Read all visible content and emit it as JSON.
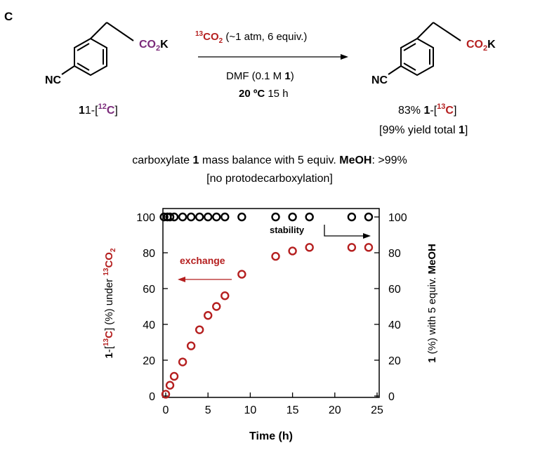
{
  "panel_label": "C",
  "scheme": {
    "reactant_label_prefix": "1-[",
    "reactant_isotope_mass": "12",
    "reactant_isotope_element": "C",
    "label_suffix": "]",
    "co2k_co": "CO",
    "co2k_sub": "2",
    "co2k_k": "K",
    "nc_label": "NC",
    "reagent_isotope_mass": "13",
    "reagent_co": "CO",
    "reagent_sub": "2",
    "reagent_conditions": " (~1 atm, 6 equiv.)",
    "solvent_prefix": "DMF (0.1 M ",
    "solvent_bold": "1",
    "solvent_suffix": ")",
    "temperature": "20 ºC",
    "time": " 15 h",
    "product_percent": "83% ",
    "product_bold": "1",
    "product_label_mid": "-[",
    "product_isotope_mass": "13",
    "product_isotope_element": "C",
    "product_yield_prefix": "[99% yield total ",
    "product_yield_bold": "1",
    "product_yield_suffix": "]"
  },
  "note": {
    "line1_prefix": "carboxylate ",
    "line1_bold1": "1",
    "line1_mid": " mass balance with 5 equiv. ",
    "line1_bold2": "MeOH",
    "line1_suffix": ": >99%",
    "line2": "[no protodecarboxylation]"
  },
  "colors": {
    "exchange": "#b51f1f",
    "purple": "#7b2a7a",
    "black": "#000000"
  },
  "chart_data": {
    "type": "scatter",
    "xlabel": "Time (h)",
    "x_ticks": [
      0,
      5,
      10,
      15,
      20,
      25
    ],
    "xlim": [
      -0.3,
      25
    ],
    "ylim": [
      0,
      100
    ],
    "y_ticks": [
      0,
      20,
      40,
      60,
      80,
      100
    ],
    "ylabel_left": {
      "p1": "1",
      "p2": "-[",
      "p3": "13",
      "p4": "C",
      "p5": "] (%) under ",
      "p6": "13",
      "p7": "CO",
      "p8": "2"
    },
    "ylabel_right": {
      "bold": "1",
      "rest": " (%) with 5 equiv. ",
      "bold2": "MeOH"
    },
    "annotations": {
      "exchange": "exchange",
      "stability": "stability"
    },
    "series": [
      {
        "name": "exchange",
        "color": "#b51f1f",
        "x": [
          0,
          0.5,
          1,
          2,
          3,
          4,
          5,
          6,
          7,
          9,
          13,
          15,
          17,
          22,
          24
        ],
        "y": [
          1,
          6,
          11,
          19,
          28,
          37,
          45,
          50,
          56,
          68,
          78,
          81,
          83,
          83,
          83
        ]
      },
      {
        "name": "stability",
        "color": "#000000",
        "x": [
          -0.2,
          0.2,
          0.5,
          1,
          2,
          3,
          4,
          5,
          6,
          7,
          9,
          13,
          15,
          17,
          22,
          24
        ],
        "y": [
          100,
          100,
          100,
          100,
          100,
          100,
          100,
          100,
          100,
          100,
          100,
          100,
          100,
          100,
          100,
          100
        ]
      }
    ]
  }
}
